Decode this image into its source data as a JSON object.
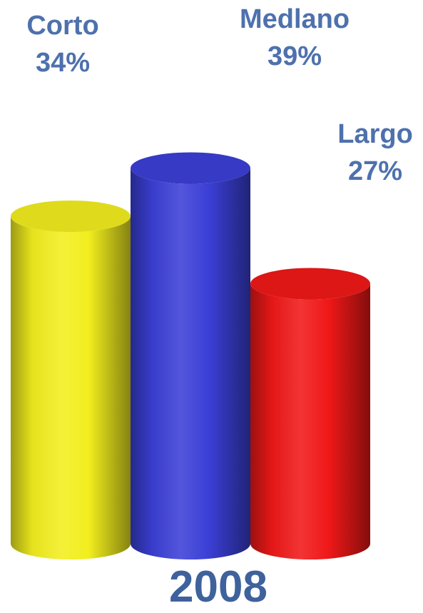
{
  "chart_data": {
    "type": "bar",
    "style": "3d-cylinder",
    "categories": [
      "Corto",
      "Medlano",
      "Largo"
    ],
    "values": [
      34,
      39,
      27
    ],
    "value_labels": [
      "34%",
      "39%",
      "27%"
    ],
    "colors": [
      "#f2ee1e",
      "#3b3fd6",
      "#f01818"
    ],
    "label_color": "#4e71ad",
    "xlabel": "2008",
    "ylabel": "",
    "grid": false,
    "legend": "none"
  }
}
